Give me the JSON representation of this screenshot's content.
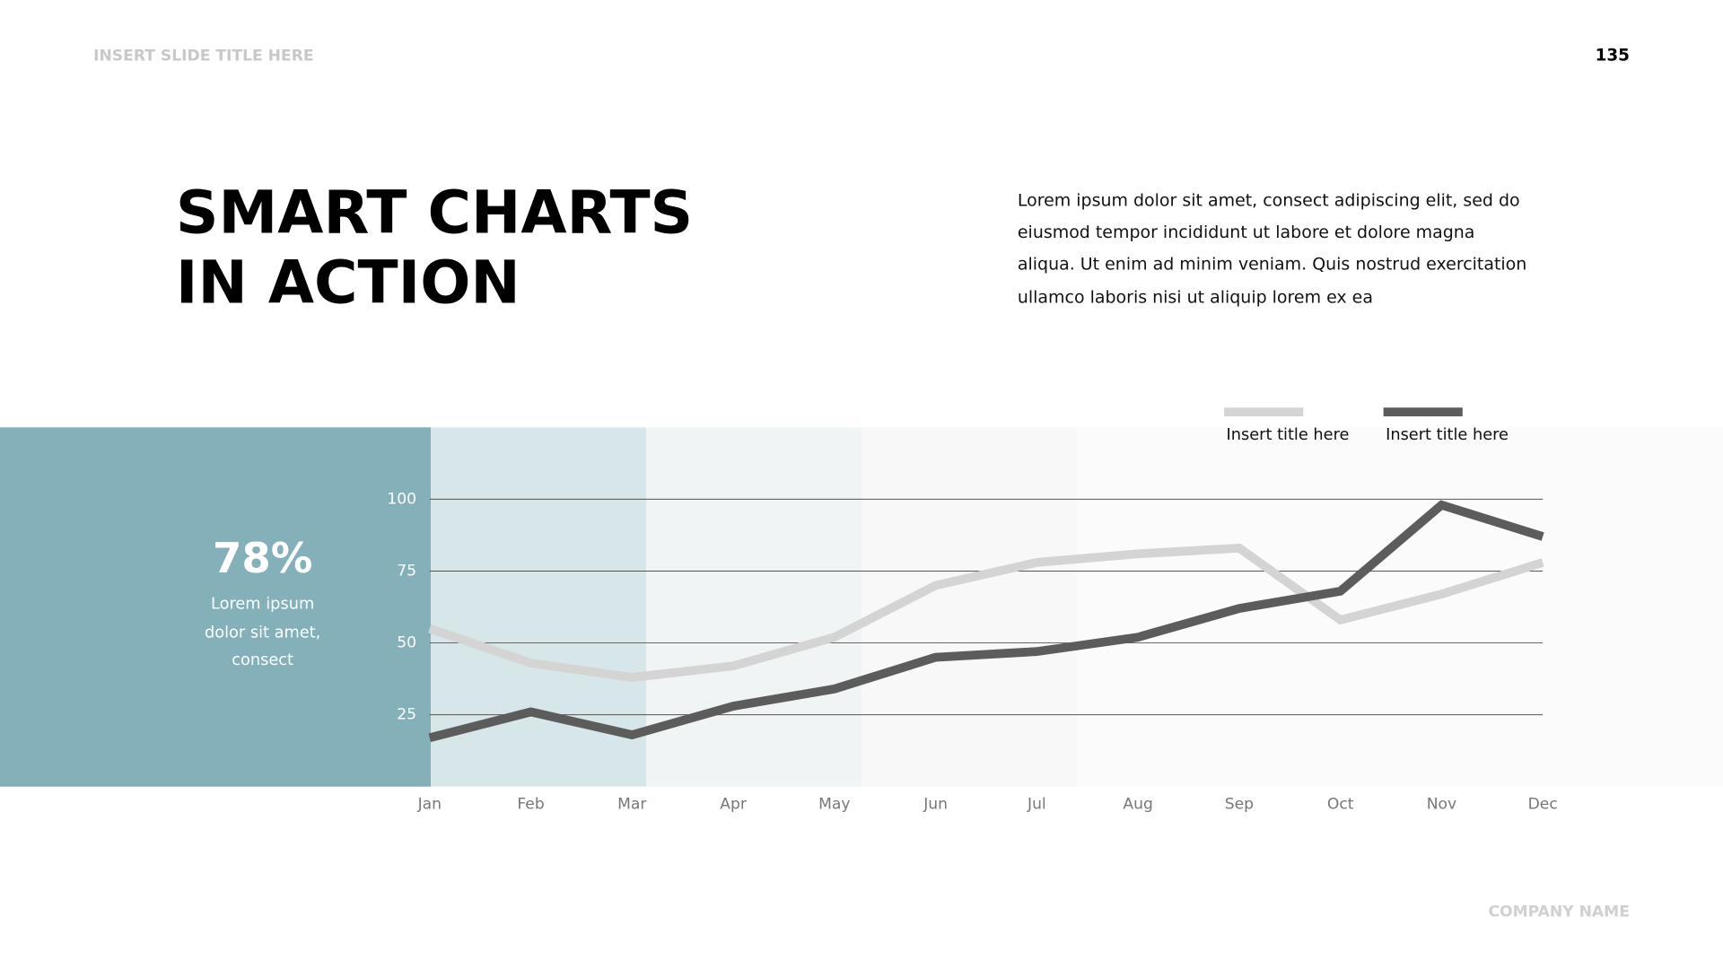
{
  "header": {
    "slide_title": "INSERT SLIDE TITLE HERE",
    "page_number": "135"
  },
  "title_lines": [
    "SMART CHARTS",
    "IN ACTION"
  ],
  "body_lines": [
    "Lorem ipsum dolor sit amet, consect adipiscing elit, sed do",
    "eiusmod tempor incididunt ut labore et dolore magna",
    "aliqua. Ut enim ad minim veniam.  Quis nostrud exercitation",
    "ullamco laboris nisi ut aliquip lorem ex ea"
  ],
  "callout": {
    "value": "78%",
    "text_lines": [
      "Lorem ipsum",
      "dolor sit amet,",
      "consect"
    ]
  },
  "footer": {
    "company": "COMPANY NAME"
  },
  "chart_data": {
    "type": "line",
    "categories": [
      "Jan",
      "Feb",
      "Mar",
      "Apr",
      "May",
      "Jun",
      "Jul",
      "Aug",
      "Sep",
      "Oct",
      "Nov",
      "Dec"
    ],
    "series": [
      {
        "name": "Insert title here",
        "color": "#d4d4d4",
        "values": [
          55,
          43,
          38,
          42,
          52,
          70,
          78,
          81,
          83,
          58,
          67,
          78
        ]
      },
      {
        "name": "Insert title here",
        "color": "#5c5c5c",
        "values": [
          17,
          26,
          18,
          28,
          34,
          45,
          47,
          52,
          62,
          68,
          98,
          87
        ]
      }
    ],
    "ylim": [
      0,
      125
    ],
    "yticks": [
      25,
      50,
      75,
      100
    ],
    "grid": true,
    "legend": "top-right"
  }
}
